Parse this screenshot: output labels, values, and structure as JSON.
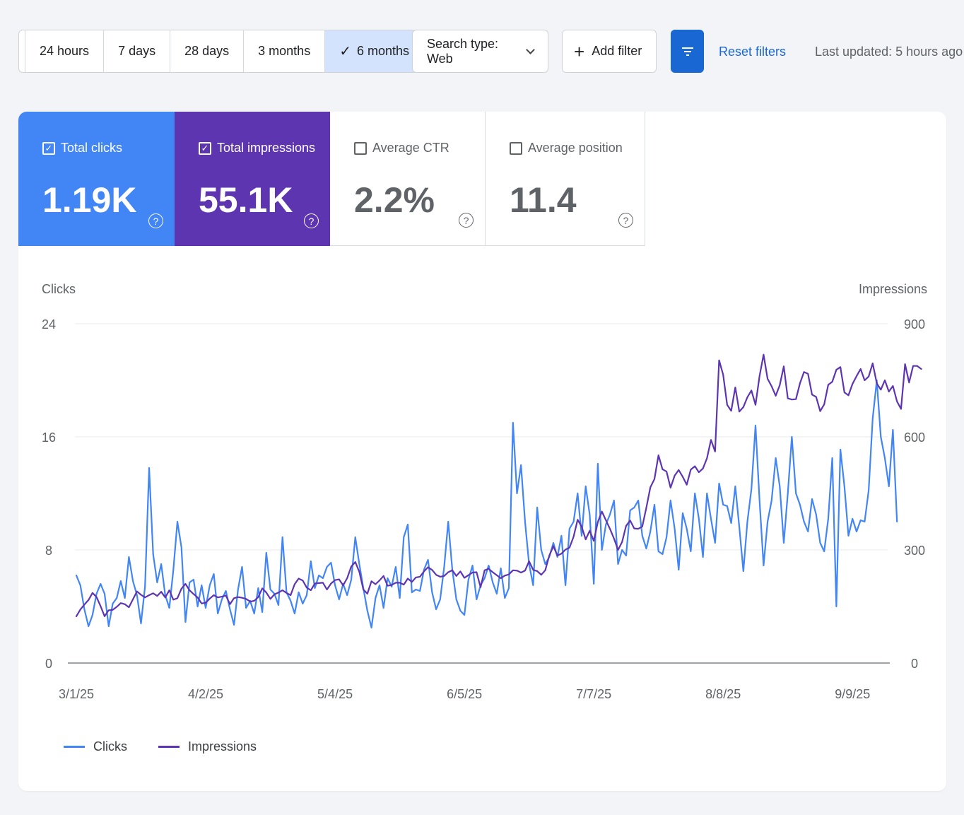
{
  "toolbar": {
    "date_ranges": [
      {
        "label": "24 hours",
        "selected": false
      },
      {
        "label": "7 days",
        "selected": false
      },
      {
        "label": "28 days",
        "selected": false
      },
      {
        "label": "3 months",
        "selected": false
      },
      {
        "label": "6 months",
        "selected": true
      }
    ],
    "search_type_label": "Search type: Web",
    "add_filter_label": "Add filter",
    "reset_filters_label": "Reset filters",
    "last_updated": "Last updated: 5 hours ago"
  },
  "metrics": {
    "clicks": {
      "label": "Total clicks",
      "value": "1.19K",
      "checked": true,
      "color": "#4285f4"
    },
    "impressions": {
      "label": "Total impressions",
      "value": "55.1K",
      "checked": true,
      "color": "#5e35b1"
    },
    "ctr": {
      "label": "Average CTR",
      "value": "2.2%",
      "checked": false
    },
    "position": {
      "label": "Average position",
      "value": "11.4",
      "checked": false
    }
  },
  "chart_data": {
    "type": "line",
    "left_axis_label": "Clicks",
    "right_axis_label": "Impressions",
    "left_ticks": [
      "24",
      "16",
      "8",
      "0"
    ],
    "right_ticks": [
      "900",
      "600",
      "300",
      "0"
    ],
    "left_range": [
      0,
      24
    ],
    "right_range": [
      0,
      900
    ],
    "x_tick_labels": [
      "3/1/25",
      "4/2/25",
      "5/4/25",
      "6/5/25",
      "7/7/25",
      "8/8/25",
      "9/9/25"
    ],
    "x_tick_day_index": [
      0,
      32,
      64,
      96,
      128,
      160,
      192
    ],
    "grid": true,
    "series": [
      {
        "name": "Clicks",
        "axis": "left",
        "color": "#4285f4",
        "values": [
          6.2,
          5.5,
          3.8,
          2.6,
          3.4,
          4.9,
          5.6,
          4.9,
          2.6,
          4.2,
          4.6,
          5.8,
          4.6,
          7.5,
          5.8,
          4.8,
          2.8,
          5.4,
          13.8,
          7.7,
          5.7,
          7.0,
          4.8,
          3.9,
          6.6,
          10.0,
          8.2,
          2.9,
          5.7,
          5.9,
          4.0,
          5.5,
          3.9,
          5.5,
          6.3,
          3.5,
          4.5,
          5.1,
          3.8,
          2.7,
          5.2,
          6.8,
          3.9,
          4.4,
          3.5,
          5.3,
          3.6,
          7.8,
          5.2,
          4.9,
          4.1,
          8.9,
          5.0,
          4.4,
          3.5,
          5.0,
          4.2,
          4.8,
          7.2,
          5.3,
          6.2,
          6.0,
          6.8,
          7.1,
          5.5,
          4.5,
          5.6,
          4.8,
          5.9,
          8.9,
          7.0,
          5.3,
          3.7,
          2.5,
          4.6,
          5.5,
          3.9,
          6.0,
          5.4,
          6.8,
          4.6,
          8.9,
          9.8,
          5.0,
          5.2,
          5.1,
          6.6,
          7.3,
          5.0,
          3.8,
          4.5,
          6.8,
          10.0,
          6.6,
          4.5,
          3.7,
          3.4,
          5.9,
          6.9,
          4.5,
          5.5,
          6.0,
          6.9,
          5.7,
          4.9,
          6.7,
          4.6,
          5.3,
          17.0,
          12.0,
          14.0,
          10.0,
          7.0,
          5.5,
          11.0,
          8.0,
          7.0,
          7.5,
          8.5,
          7.5,
          9.0,
          5.5,
          9.5,
          10.0,
          12.0,
          9.0,
          12.5,
          10.5,
          5.6,
          14.1,
          8.0,
          9.8,
          10.5,
          11.5,
          7.0,
          8.0,
          7.6,
          10.8,
          11.0,
          11.5,
          9.0,
          8.1,
          9.3,
          11.2,
          7.9,
          7.7,
          8.9,
          11.5,
          9.5,
          6.6,
          10.6,
          9.5,
          7.9,
          12.0,
          10.2,
          7.5,
          12.0,
          10.2,
          8.5,
          12.7,
          11.2,
          11.1,
          9.9,
          12.5,
          9.6,
          6.5,
          10.0,
          12.3,
          16.8,
          11.5,
          6.9,
          10.0,
          11.5,
          14.5,
          12.5,
          8.5,
          12.0,
          16.0,
          12.0,
          11.2,
          10.0,
          9.3,
          11.6,
          10.5,
          8.5,
          7.9,
          10.2,
          14.5,
          4.0,
          15.1,
          12.5,
          9.0,
          10.2,
          9.3,
          10.1,
          10.0,
          12.2,
          17.3,
          20.0,
          16.0,
          14.5,
          12.5,
          16.5,
          10.0
        ]
      },
      {
        "name": "Impressions",
        "axis": "right",
        "color": "#5e35b1",
        "values": [
          124,
          142,
          155,
          167,
          186,
          175,
          151,
          124,
          140,
          141,
          149,
          159,
          156,
          148,
          169,
          190,
          181,
          174,
          180,
          185,
          178,
          189,
          174,
          193,
          168,
          172,
          197,
          210,
          193,
          183,
          174,
          158,
          160,
          171,
          180,
          174,
          176,
          179,
          156,
          172,
          175,
          173,
          170,
          163,
          165,
          175,
          198,
          187,
          170,
          182,
          187,
          193,
          186,
          180,
          209,
          224,
          219,
          200,
          193,
          211,
          212,
          213,
          195,
          211,
          220,
          222,
          206,
          225,
          256,
          268,
          242,
          195,
          184,
          217,
          209,
          219,
          231,
          205,
          207,
          213,
          213,
          208,
          224,
          215,
          227,
          229,
          243,
          254,
          247,
          234,
          229,
          231,
          241,
          246,
          231,
          243,
          226,
          233,
          240,
          241,
          201,
          246,
          250,
          241,
          233,
          225,
          232,
          235,
          246,
          245,
          240,
          245,
          270,
          247,
          244,
          234,
          246,
          285,
          310,
          285,
          290,
          301,
          306,
          335,
          380,
          362,
          328,
          351,
          324,
          374,
          402,
          379,
          356,
          330,
          300,
          321,
          364,
          378,
          357,
          356,
          362,
          412,
          466,
          488,
          551,
          514,
          508,
          465,
          497,
          512,
          494,
          473,
          513,
          522,
          506,
          516,
          543,
          592,
          561,
          803,
          765,
          685,
          669,
          731,
          667,
          679,
          705,
          723,
          685,
          761,
          818,
          754,
          734,
          709,
          737,
          787,
          702,
          699,
          700,
          742,
          772,
          767,
          712,
          706,
          668,
          686,
          738,
          746,
          778,
          785,
          718,
          710,
          740,
          761,
          780,
          750,
          760,
          795,
          742,
          725,
          750,
          720,
          735,
          694,
          674,
          793,
          744,
          788,
          788,
          780
        ]
      }
    ]
  }
}
